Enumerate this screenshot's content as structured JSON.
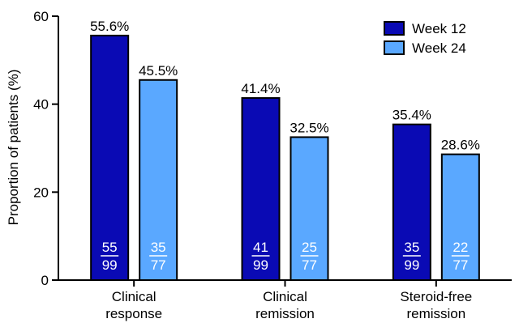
{
  "chart_data": {
    "type": "bar",
    "title": "",
    "ylabel": "Proportion of patients (%)",
    "xlabel": "",
    "ylim": [
      0,
      60
    ],
    "yticks": [
      0,
      20,
      40,
      60
    ],
    "grid": false,
    "legend_position": "top-right",
    "categories": [
      [
        "Clinical",
        "response"
      ],
      [
        "Clinical",
        "remission"
      ],
      [
        "Steroid-free",
        "remission"
      ]
    ],
    "series": [
      {
        "name": "Week 12",
        "color": "#0a0ab4",
        "values": [
          55.6,
          41.4,
          35.4
        ],
        "labels": [
          "55.6%",
          "41.4%",
          "35.4%"
        ],
        "numerators": [
          "55",
          "41",
          "35"
        ],
        "denominators": [
          "99",
          "99",
          "99"
        ]
      },
      {
        "name": "Week 24",
        "color": "#5aa8ff",
        "values": [
          45.5,
          32.5,
          28.6
        ],
        "labels": [
          "45.5%",
          "32.5%",
          "28.6%"
        ],
        "numerators": [
          "35",
          "25",
          "22"
        ],
        "denominators": [
          "77",
          "77",
          "77"
        ]
      }
    ]
  }
}
